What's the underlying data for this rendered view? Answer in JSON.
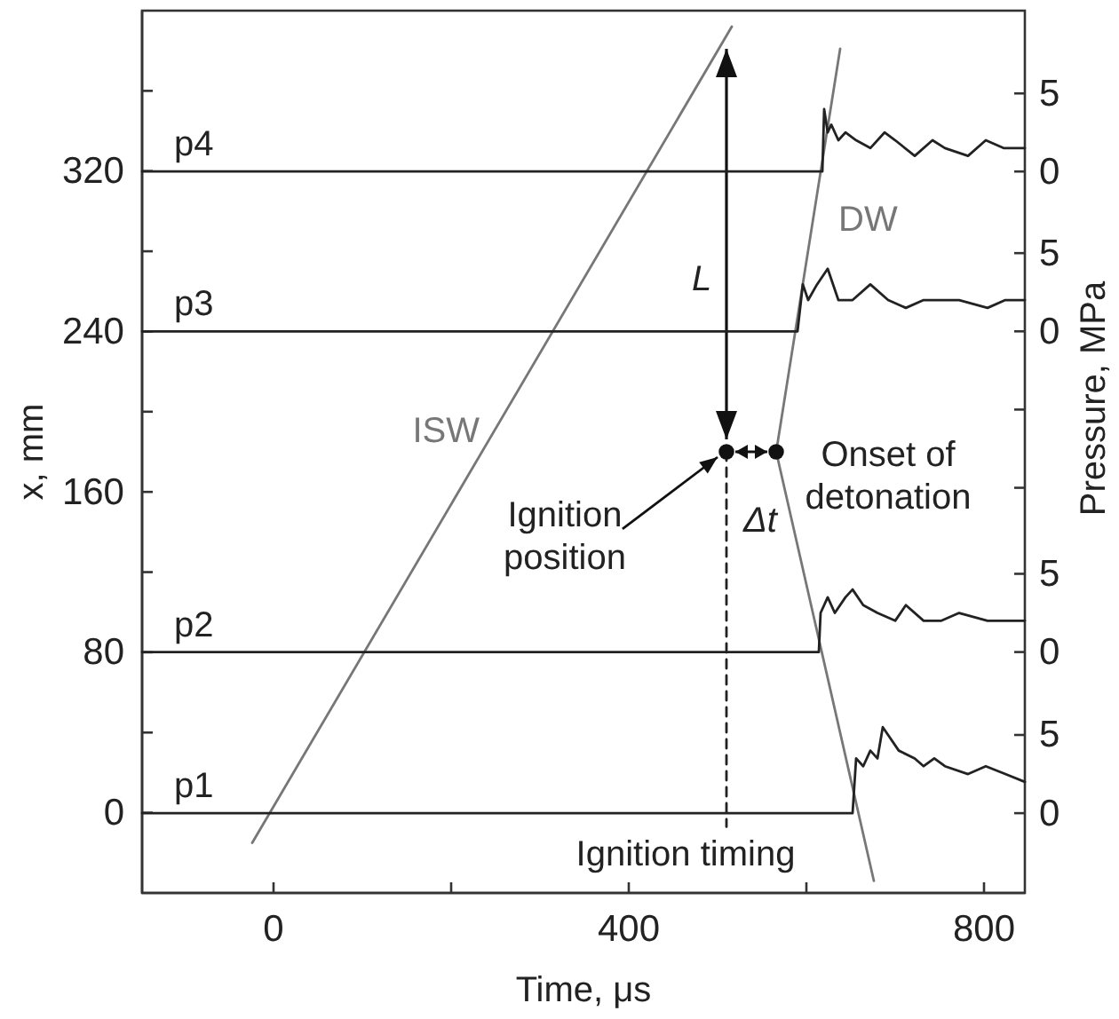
{
  "chart_data": [
    {
      "type": "line",
      "xlabel": "Time, μs",
      "ylabel": "x, mm",
      "xlim": [
        -148,
        846
      ],
      "ylim": [
        -40,
        400
      ],
      "xticks": [
        0,
        {
          "value": 200,
          "label": null
        },
        400,
        {
          "value": 600,
          "label": null
        },
        800
      ],
      "yticks": [
        0,
        {
          "value": 40,
          "label": null
        },
        80,
        {
          "value": 120,
          "label": null
        },
        160,
        {
          "value": 200,
          "label": null
        },
        240,
        {
          "value": 280,
          "label": null
        },
        320,
        {
          "value": 360,
          "label": null
        }
      ],
      "grid": false,
      "line_style": "solid",
      "series": [
        {
          "name": "ISW",
          "color": "#777777",
          "x": [
            -24,
            516
          ],
          "values": [
            -15,
            392
          ]
        },
        {
          "name": "DW",
          "color": "#777777",
          "x": [
            676,
            566,
            638
          ],
          "values": [
            -34,
            180,
            381
          ]
        },
        {
          "type": "line",
          "color": "#222222",
          "line_style": "dashed",
          "x": [
            510,
            510
          ],
          "values": [
            180,
            -7
          ]
        },
        {
          "type": "scatter",
          "marker": "circle",
          "color": "#111111",
          "x": [
            510,
            566
          ],
          "values": [
            180,
            180
          ]
        }
      ],
      "annotations": [
        "L",
        "Ignition position",
        "Onset of detonation",
        "Δt",
        "Ignition timing"
      ]
    },
    {
      "type": "line",
      "ylabel": "Pressure, MPa",
      "tick_labels": "y",
      "xlim": [
        -148,
        846
      ],
      "ylim": [
        -5.1,
        51.3
      ],
      "yticks": [
        0,
        5
      ],
      "series": [
        {
          "name": "p1",
          "color": "#222222",
          "x": [
            -148,
            652,
            656,
            664,
            672,
            680,
            686,
            692,
            704,
            722,
            732,
            744,
            756,
            782,
            802,
            824,
            846
          ],
          "values": [
            0,
            0,
            3.5,
            3,
            4,
            3.5,
            5.5,
            5,
            4,
            3.5,
            3,
            3.5,
            3,
            2.5,
            3,
            2.5,
            2
          ]
        }
      ]
    },
    {
      "type": "line",
      "tick_labels": "y",
      "xlim": [
        -148,
        846
      ],
      "ylim": [
        -15.4,
        41.0
      ],
      "yticks": [
        0,
        5
      ],
      "series": [
        {
          "name": "p2",
          "color": "#222222",
          "x": [
            -148,
            614,
            616,
            624,
            632,
            644,
            652,
            664,
            680,
            700,
            712,
            732,
            752,
            772,
            804,
            824,
            846
          ],
          "values": [
            0,
            0,
            2.5,
            3.5,
            2.5,
            3.5,
            4,
            3,
            2.5,
            2,
            3,
            2,
            2,
            2.5,
            2,
            2,
            2
          ]
        }
      ]
    },
    {
      "type": "line",
      "tick_labels": "y",
      "xlim": [
        -148,
        846
      ],
      "ylim": [
        -35.9,
        20.5
      ],
      "yticks": [
        {
          "value": -10,
          "label": null
        },
        {
          "value": -5,
          "label": null
        },
        0,
        5
      ],
      "series": [
        {
          "name": "p3",
          "color": "#222222",
          "x": [
            -148,
            590,
            596,
            602,
            612,
            624,
            636,
            652,
            672,
            692,
            712,
            732,
            752,
            772,
            804,
            824,
            846
          ],
          "values": [
            0,
            0,
            3,
            2,
            3,
            4,
            2,
            2,
            3,
            2,
            1.5,
            2,
            2,
            2,
            1.5,
            2,
            2
          ]
        }
      ]
    },
    {
      "type": "line",
      "tick_labels": "y",
      "xlim": [
        -148,
        846
      ],
      "ylim": [
        -46.2,
        10.3
      ],
      "yticks": [
        0,
        5
      ],
      "series": [
        {
          "name": "p4",
          "color": "#222222",
          "x": [
            -148,
            618,
            620,
            624,
            628,
            636,
            644,
            656,
            672,
            688,
            700,
            722,
            742,
            756,
            782,
            802,
            822,
            846
          ],
          "values": [
            0,
            0,
            4,
            2.5,
            3,
            2,
            2.5,
            2,
            1.5,
            2.5,
            2,
            1,
            2,
            1.5,
            1,
            2,
            1.5,
            1.5
          ]
        }
      ]
    }
  ]
}
